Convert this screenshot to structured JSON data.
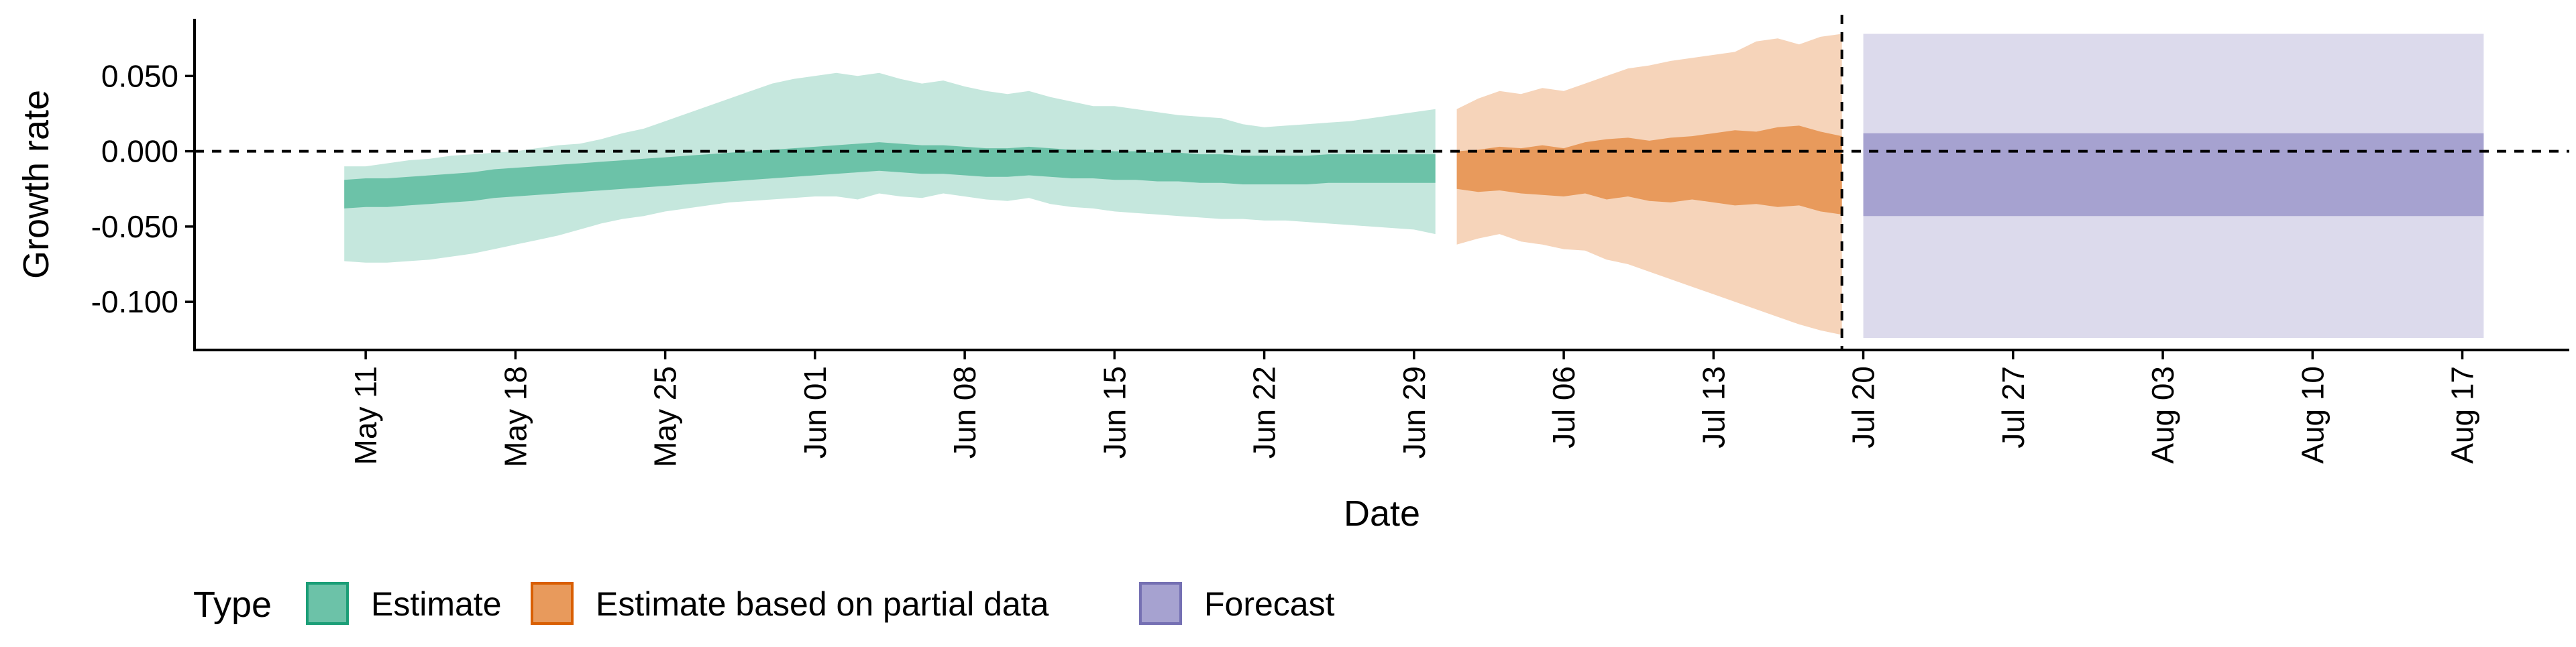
{
  "chart_data": {
    "type": "area",
    "title": "",
    "xlabel": "Date",
    "ylabel": "Growth rate",
    "xlim": [
      "2020-05-03",
      "2020-08-22"
    ],
    "ylim": [
      -0.132,
      0.088
    ],
    "x_ticks": [
      "2020-05-11",
      "2020-05-18",
      "2020-05-25",
      "2020-06-01",
      "2020-06-08",
      "2020-06-15",
      "2020-06-22",
      "2020-06-29",
      "2020-07-06",
      "2020-07-13",
      "2020-07-20",
      "2020-07-27",
      "2020-08-03",
      "2020-08-10",
      "2020-08-17"
    ],
    "x_tick_labels": [
      "May 11",
      "May 18",
      "May 25",
      "Jun 01",
      "Jun 08",
      "Jun 15",
      "Jun 22",
      "Jun 29",
      "Jul 06",
      "Jul 13",
      "Jul 20",
      "Jul 27",
      "Aug 03",
      "Aug 10",
      "Aug 17"
    ],
    "y_ticks": [
      0.05,
      0.0,
      -0.05,
      -0.1
    ],
    "y_tick_labels": [
      "0.050",
      "0.000",
      "-0.050",
      "-0.100"
    ],
    "reference_lines": {
      "horizontal_y": 0.0,
      "vertical_x": "2020-07-19"
    },
    "legend": {
      "title": "Type",
      "position": "bottom-left",
      "entries": [
        {
          "label": "Estimate",
          "fill": "#6cc2a8",
          "border": "#1b9e77"
        },
        {
          "label": "Estimate based on partial data",
          "fill": "#e89a5c",
          "border": "#d95f02"
        },
        {
          "label": "Forecast",
          "fill": "#a6a2d0",
          "border": "#7570b3"
        }
      ]
    },
    "series": [
      {
        "name": "Estimate",
        "inner_color": "#6cc2a8",
        "outer_color": "#c5e7dd",
        "x": [
          "2020-05-10",
          "2020-05-11",
          "2020-05-12",
          "2020-05-13",
          "2020-05-14",
          "2020-05-15",
          "2020-05-16",
          "2020-05-17",
          "2020-05-18",
          "2020-05-19",
          "2020-05-20",
          "2020-05-21",
          "2020-05-22",
          "2020-05-23",
          "2020-05-24",
          "2020-05-25",
          "2020-05-26",
          "2020-05-27",
          "2020-05-28",
          "2020-05-29",
          "2020-05-30",
          "2020-05-31",
          "2020-06-01",
          "2020-06-02",
          "2020-06-03",
          "2020-06-04",
          "2020-06-05",
          "2020-06-06",
          "2020-06-07",
          "2020-06-08",
          "2020-06-09",
          "2020-06-10",
          "2020-06-11",
          "2020-06-12",
          "2020-06-13",
          "2020-06-14",
          "2020-06-15",
          "2020-06-16",
          "2020-06-17",
          "2020-06-18",
          "2020-06-19",
          "2020-06-20",
          "2020-06-21",
          "2020-06-22",
          "2020-06-23",
          "2020-06-24",
          "2020-06-25",
          "2020-06-26",
          "2020-06-27",
          "2020-06-28",
          "2020-06-29",
          "2020-06-30"
        ],
        "outer_upper": [
          -0.01,
          -0.01,
          -0.008,
          -0.006,
          -0.005,
          -0.003,
          -0.002,
          -0.001,
          0.0,
          0.002,
          0.004,
          0.005,
          0.008,
          0.012,
          0.015,
          0.02,
          0.025,
          0.03,
          0.035,
          0.04,
          0.045,
          0.048,
          0.05,
          0.052,
          0.05,
          0.052,
          0.048,
          0.045,
          0.047,
          0.043,
          0.04,
          0.038,
          0.04,
          0.036,
          0.033,
          0.03,
          0.03,
          0.028,
          0.026,
          0.024,
          0.023,
          0.022,
          0.018,
          0.016,
          0.017,
          0.018,
          0.019,
          0.02,
          0.022,
          0.024,
          0.026,
          0.028
        ],
        "inner_upper": [
          -0.019,
          -0.018,
          -0.018,
          -0.017,
          -0.016,
          -0.015,
          -0.014,
          -0.012,
          -0.011,
          -0.01,
          -0.009,
          -0.008,
          -0.007,
          -0.006,
          -0.005,
          -0.004,
          -0.003,
          -0.002,
          -0.001,
          0.0,
          0.001,
          0.002,
          0.003,
          0.004,
          0.005,
          0.006,
          0.005,
          0.004,
          0.004,
          0.003,
          0.002,
          0.002,
          0.003,
          0.002,
          0.001,
          0.001,
          0.0,
          0.0,
          -0.001,
          -0.001,
          -0.002,
          -0.002,
          -0.003,
          -0.003,
          -0.003,
          -0.003,
          -0.002,
          -0.002,
          -0.002,
          -0.002,
          -0.002,
          -0.002
        ],
        "inner_lower": [
          -0.038,
          -0.037,
          -0.037,
          -0.036,
          -0.035,
          -0.034,
          -0.033,
          -0.031,
          -0.03,
          -0.029,
          -0.028,
          -0.027,
          -0.026,
          -0.025,
          -0.024,
          -0.023,
          -0.022,
          -0.021,
          -0.02,
          -0.019,
          -0.018,
          -0.017,
          -0.016,
          -0.015,
          -0.014,
          -0.013,
          -0.014,
          -0.015,
          -0.015,
          -0.016,
          -0.017,
          -0.017,
          -0.016,
          -0.017,
          -0.018,
          -0.018,
          -0.019,
          -0.019,
          -0.02,
          -0.02,
          -0.021,
          -0.021,
          -0.022,
          -0.022,
          -0.022,
          -0.022,
          -0.021,
          -0.021,
          -0.021,
          -0.021,
          -0.021,
          -0.021
        ],
        "outer_lower": [
          -0.073,
          -0.074,
          -0.074,
          -0.073,
          -0.072,
          -0.07,
          -0.068,
          -0.065,
          -0.062,
          -0.059,
          -0.056,
          -0.052,
          -0.048,
          -0.045,
          -0.043,
          -0.04,
          -0.038,
          -0.036,
          -0.034,
          -0.033,
          -0.032,
          -0.031,
          -0.03,
          -0.03,
          -0.032,
          -0.028,
          -0.03,
          -0.031,
          -0.028,
          -0.03,
          -0.032,
          -0.033,
          -0.031,
          -0.035,
          -0.037,
          -0.038,
          -0.04,
          -0.041,
          -0.042,
          -0.043,
          -0.044,
          -0.045,
          -0.045,
          -0.046,
          -0.046,
          -0.047,
          -0.048,
          -0.049,
          -0.05,
          -0.051,
          -0.052,
          -0.055
        ]
      },
      {
        "name": "Estimate based on partial data",
        "inner_color": "#e89a5c",
        "outer_color": "#f6d4ba",
        "x": [
          "2020-07-01",
          "2020-07-02",
          "2020-07-03",
          "2020-07-04",
          "2020-07-05",
          "2020-07-06",
          "2020-07-07",
          "2020-07-08",
          "2020-07-09",
          "2020-07-10",
          "2020-07-11",
          "2020-07-12",
          "2020-07-13",
          "2020-07-14",
          "2020-07-15",
          "2020-07-16",
          "2020-07-17",
          "2020-07-18",
          "2020-07-19"
        ],
        "outer_upper": [
          0.028,
          0.035,
          0.04,
          0.038,
          0.042,
          0.04,
          0.045,
          0.05,
          0.055,
          0.057,
          0.06,
          0.062,
          0.064,
          0.066,
          0.073,
          0.075,
          0.071,
          0.076,
          0.078
        ],
        "inner_upper": [
          0.0,
          0.001,
          0.003,
          0.002,
          0.004,
          0.002,
          0.006,
          0.008,
          0.009,
          0.007,
          0.009,
          0.01,
          0.012,
          0.014,
          0.013,
          0.016,
          0.017,
          0.013,
          0.01
        ],
        "inner_lower": [
          -0.025,
          -0.027,
          -0.026,
          -0.028,
          -0.029,
          -0.03,
          -0.028,
          -0.032,
          -0.03,
          -0.033,
          -0.034,
          -0.032,
          -0.034,
          -0.036,
          -0.035,
          -0.037,
          -0.036,
          -0.04,
          -0.042
        ],
        "outer_lower": [
          -0.062,
          -0.058,
          -0.055,
          -0.06,
          -0.062,
          -0.065,
          -0.066,
          -0.072,
          -0.075,
          -0.08,
          -0.085,
          -0.09,
          -0.095,
          -0.1,
          -0.105,
          -0.11,
          -0.115,
          -0.119,
          -0.122
        ]
      },
      {
        "name": "Forecast",
        "inner_color": "#a6a2d0",
        "outer_color": "#dcdaec",
        "x": [
          "2020-07-20",
          "2020-08-18"
        ],
        "outer_upper": [
          0.078,
          0.078
        ],
        "inner_upper": [
          0.012,
          0.012
        ],
        "inner_lower": [
          -0.043,
          -0.043
        ],
        "outer_lower": [
          -0.124,
          -0.124
        ]
      }
    ]
  }
}
